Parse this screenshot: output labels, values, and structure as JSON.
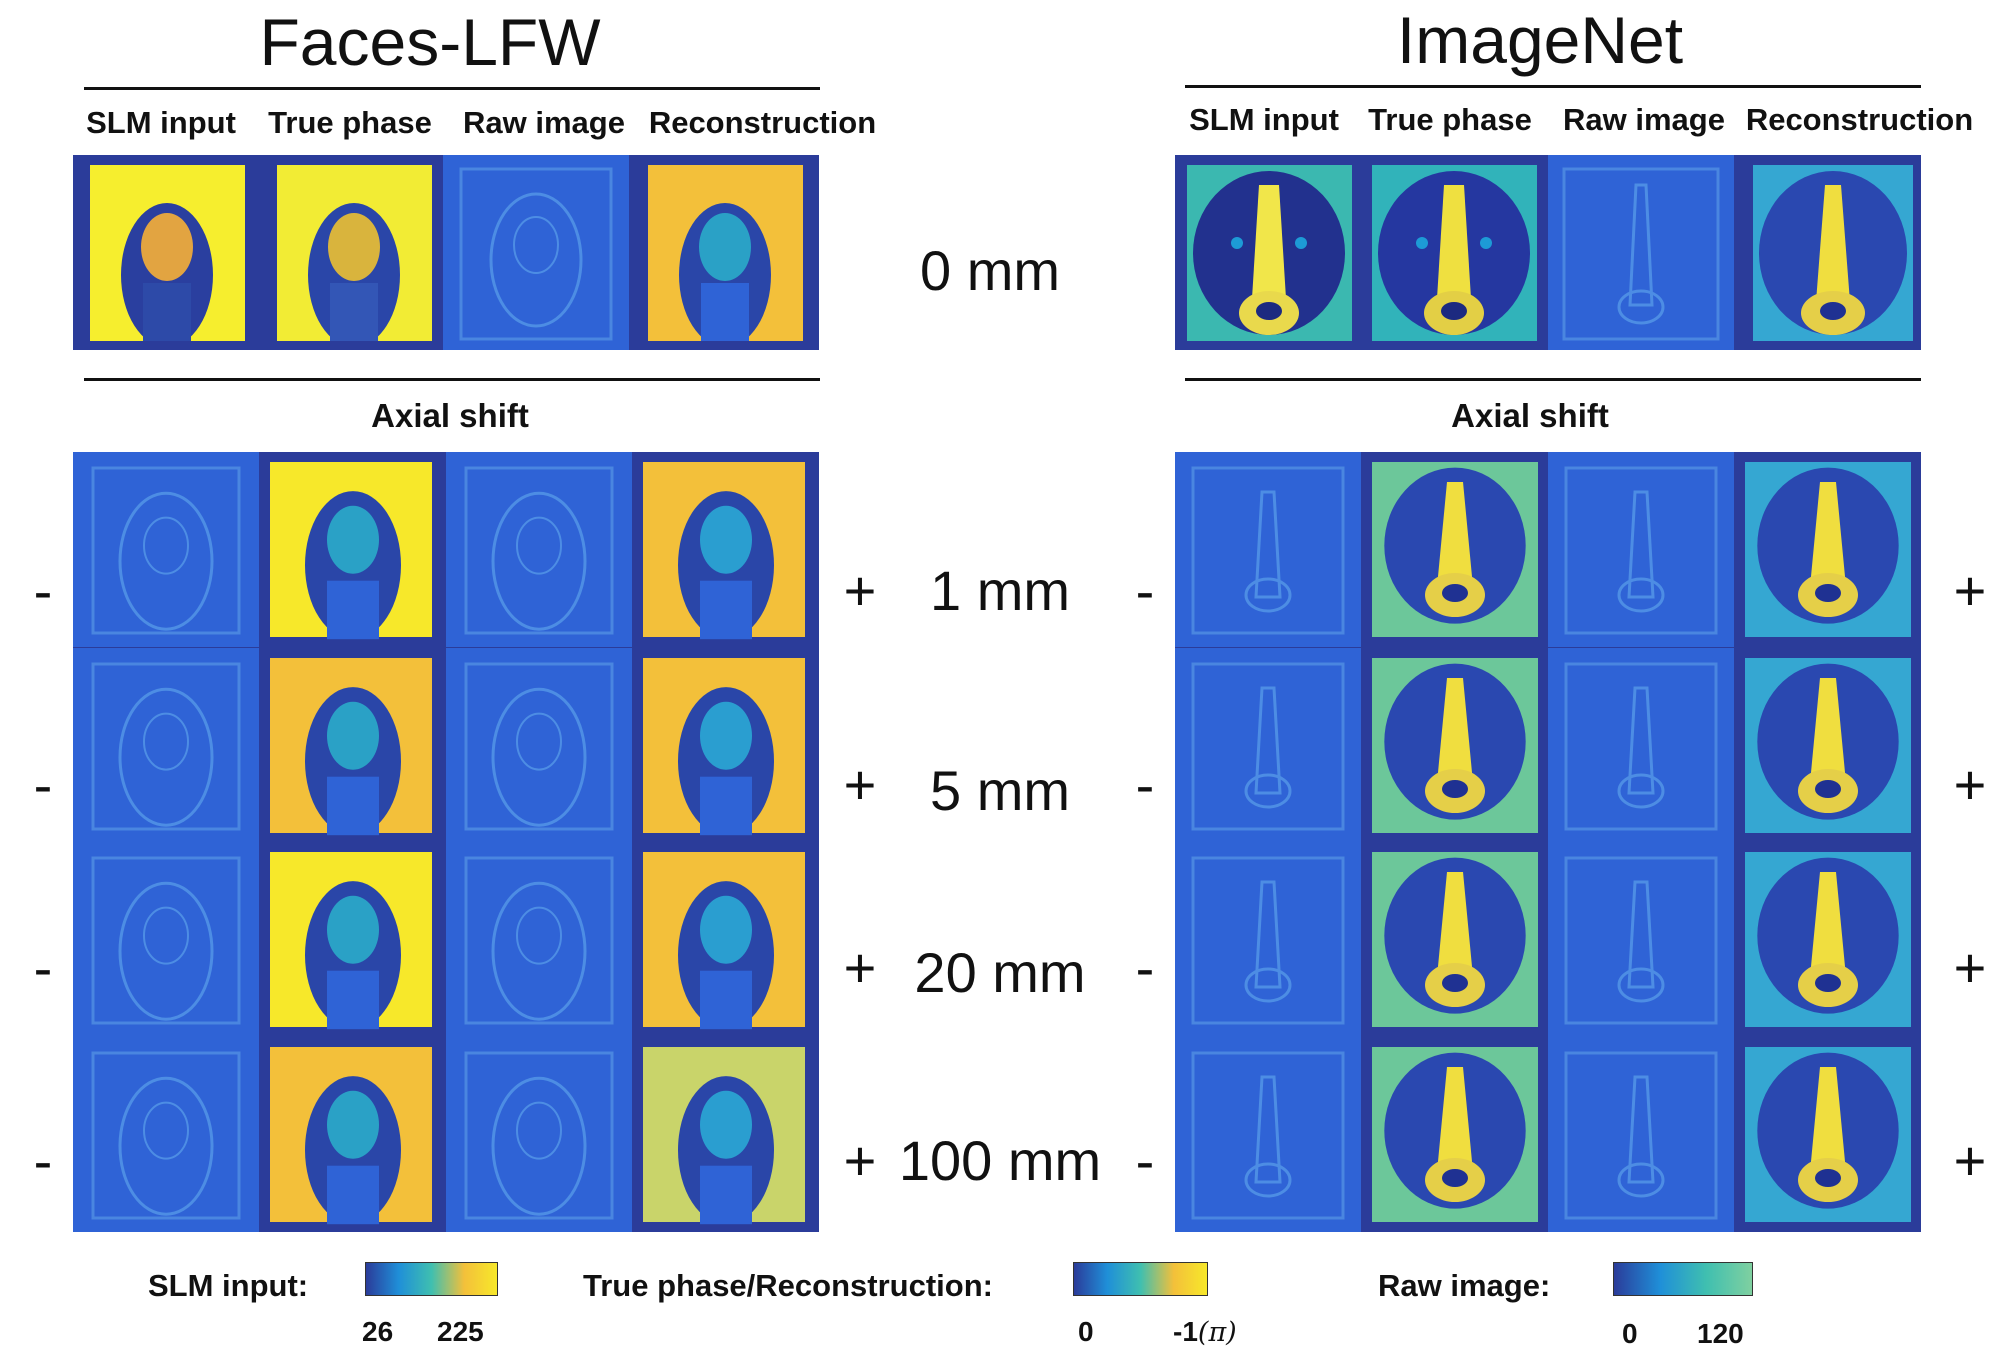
{
  "datasets": {
    "left": {
      "title": "Faces-LFW"
    },
    "right": {
      "title": "ImageNet"
    }
  },
  "column_headers": [
    "SLM input",
    "True phase",
    "Raw image",
    "Reconstruction"
  ],
  "axial_shift_label": "Axial shift",
  "distances": [
    "0 mm",
    "1 mm",
    "5 mm",
    "20 mm",
    "100 mm"
  ],
  "signs": {
    "minus": "-",
    "plus": "+"
  },
  "legend": {
    "slm": {
      "label": "SLM input:",
      "min": "26",
      "max": "225"
    },
    "phase": {
      "label": "True phase/Reconstruction:",
      "min": "0",
      "max": "-1",
      "unit": "(π)"
    },
    "raw": {
      "label": "Raw image:",
      "min": "0",
      "max": "120"
    }
  },
  "colors": {
    "panel_bg": "#2b3c9a",
    "raw_bg": "#2f63d6",
    "face_bright": "#f7e82a",
    "face_mid": "#f3c03a",
    "dark_blue": "#2c3592",
    "mid_blue": "#1f8fd8",
    "teal": "#3fbfb0"
  }
}
